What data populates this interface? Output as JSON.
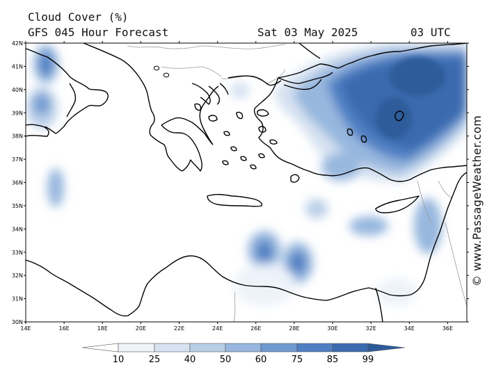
{
  "header": {
    "title": "Cloud Cover (%)",
    "model": "GFS 045 Hour Forecast",
    "date": "Sat 03 May 2025",
    "time": "03 UTC"
  },
  "watermark": "© www.PassageWeather.com",
  "map": {
    "lat_labels": [
      "42N",
      "41N",
      "40N",
      "39N",
      "38N",
      "37N",
      "36N",
      "35N",
      "34N",
      "33N",
      "32N",
      "31N",
      "30N"
    ],
    "lon_labels": [
      "14E",
      "16E",
      "18E",
      "20E",
      "22E",
      "24E",
      "26E",
      "28E",
      "30E",
      "32E",
      "34E",
      "36E"
    ],
    "lat_range": [
      30,
      42
    ],
    "lon_range": [
      14,
      37
    ],
    "land_color": "#ffffff",
    "coast_color": "#000000",
    "border_color": "#999999"
  },
  "colorbar": {
    "levels": [
      "10",
      "25",
      "40",
      "50",
      "60",
      "75",
      "85",
      "99"
    ],
    "colors": [
      "#ffffff",
      "#eef3fa",
      "#d6e2f1",
      "#b9cfe8",
      "#97b7de",
      "#7099d0",
      "#4f7fc2",
      "#3a6aaf",
      "#2d5b9a"
    ]
  }
}
